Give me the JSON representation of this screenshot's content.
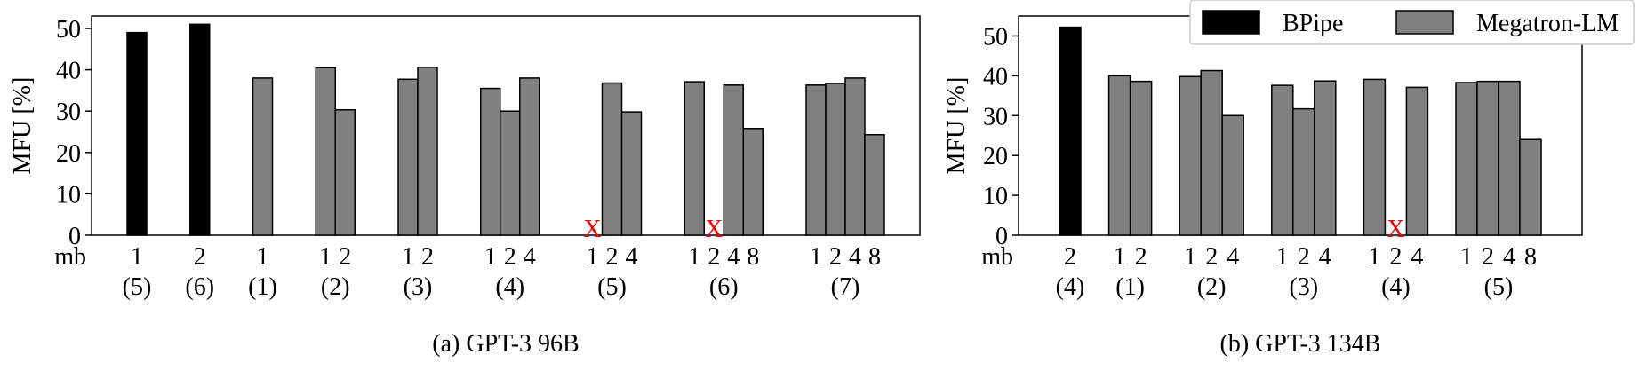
{
  "legend": {
    "items": [
      {
        "label": "BPipe",
        "color": "#000000"
      },
      {
        "label": "Megatron-LM",
        "color": "#808080"
      }
    ]
  },
  "chart_data": [
    {
      "type": "bar",
      "caption": "(a) GPT-3 96B",
      "ylabel": "MFU [%]",
      "ylim": [
        0,
        53
      ],
      "yticks": [
        "0",
        "10",
        "20",
        "30",
        "40",
        "50"
      ],
      "xprefix": "mb",
      "groups": [
        {
          "label": "(5)",
          "bars": [
            {
              "mb": "1",
              "value": 49,
              "series": "BPipe"
            }
          ]
        },
        {
          "label": "(6)",
          "bars": [
            {
              "mb": "2",
              "value": 51,
              "series": "BPipe"
            }
          ]
        },
        {
          "label": "(1)",
          "bars": [
            {
              "mb": "1",
              "value": 38,
              "series": "Megatron-LM"
            }
          ]
        },
        {
          "label": "(2)",
          "bars": [
            {
              "mb": "1",
              "value": 40.5,
              "series": "Megatron-LM"
            },
            {
              "mb": "2",
              "value": 30.3,
              "series": "Megatron-LM"
            }
          ]
        },
        {
          "label": "(3)",
          "bars": [
            {
              "mb": "1",
              "value": 37.7,
              "series": "Megatron-LM"
            },
            {
              "mb": "2",
              "value": 40.6,
              "series": "Megatron-LM"
            }
          ]
        },
        {
          "label": "(4)",
          "bars": [
            {
              "mb": "1",
              "value": 35.5,
              "series": "Megatron-LM"
            },
            {
              "mb": "2",
              "value": 30,
              "series": "Megatron-LM"
            },
            {
              "mb": "4",
              "value": 38,
              "series": "Megatron-LM"
            }
          ]
        },
        {
          "label": "(5)",
          "bars": [
            {
              "mb": "1",
              "value": null,
              "failed": true,
              "series": "Megatron-LM"
            },
            {
              "mb": "2",
              "value": 36.8,
              "series": "Megatron-LM"
            },
            {
              "mb": "4",
              "value": 29.8,
              "series": "Megatron-LM"
            }
          ]
        },
        {
          "label": "(6)",
          "bars": [
            {
              "mb": "1",
              "value": 37.1,
              "series": "Megatron-LM"
            },
            {
              "mb": "2",
              "value": null,
              "failed": true,
              "series": "Megatron-LM"
            },
            {
              "mb": "4",
              "value": 36.3,
              "series": "Megatron-LM"
            },
            {
              "mb": "8",
              "value": 25.8,
              "series": "Megatron-LM"
            }
          ]
        },
        {
          "label": "(7)",
          "bars": [
            {
              "mb": "1",
              "value": 36.3,
              "series": "Megatron-LM"
            },
            {
              "mb": "2",
              "value": 36.7,
              "series": "Megatron-LM"
            },
            {
              "mb": "4",
              "value": 38,
              "series": "Megatron-LM"
            },
            {
              "mb": "8",
              "value": 24.3,
              "series": "Megatron-LM"
            }
          ]
        }
      ]
    },
    {
      "type": "bar",
      "caption": "(b) GPT-3 134B",
      "ylabel": "MFU [%]",
      "ylim": [
        0,
        55
      ],
      "yticks": [
        "0",
        "10",
        "20",
        "30",
        "40",
        "50"
      ],
      "xprefix": "mb",
      "groups": [
        {
          "label": "(4)",
          "bars": [
            {
              "mb": "2",
              "value": 52.2,
              "series": "BPipe"
            }
          ]
        },
        {
          "label": "(1)",
          "bars": [
            {
              "mb": "1",
              "value": 40,
              "series": "Megatron-LM"
            },
            {
              "mb": "2",
              "value": 38.6,
              "series": "Megatron-LM"
            }
          ]
        },
        {
          "label": "(2)",
          "bars": [
            {
              "mb": "1",
              "value": 39.8,
              "series": "Megatron-LM"
            },
            {
              "mb": "2",
              "value": 41.3,
              "series": "Megatron-LM"
            },
            {
              "mb": "4",
              "value": 30,
              "series": "Megatron-LM"
            }
          ]
        },
        {
          "label": "(3)",
          "bars": [
            {
              "mb": "1",
              "value": 37.6,
              "series": "Megatron-LM"
            },
            {
              "mb": "2",
              "value": 31.7,
              "series": "Megatron-LM"
            },
            {
              "mb": "4",
              "value": 38.7,
              "series": "Megatron-LM"
            }
          ]
        },
        {
          "label": "(4)",
          "bars": [
            {
              "mb": "1",
              "value": 39.1,
              "series": "Megatron-LM"
            },
            {
              "mb": "2",
              "value": null,
              "failed": true,
              "series": "Megatron-LM"
            },
            {
              "mb": "4",
              "value": 37.1,
              "series": "Megatron-LM"
            }
          ]
        },
        {
          "label": "(5)",
          "bars": [
            {
              "mb": "1",
              "value": 38.3,
              "series": "Megatron-LM"
            },
            {
              "mb": "2",
              "value": 38.6,
              "series": "Megatron-LM"
            },
            {
              "mb": "4",
              "value": 38.6,
              "series": "Megatron-LM"
            },
            {
              "mb": "8",
              "value": 24,
              "series": "Megatron-LM"
            }
          ]
        }
      ]
    }
  ],
  "fail_marker": "X"
}
